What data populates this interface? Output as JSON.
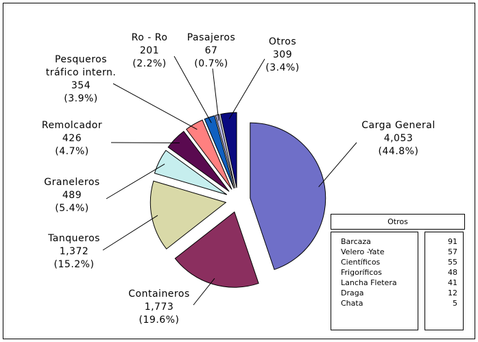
{
  "chart_data": {
    "type": "pie",
    "categories": [
      "Carga General",
      "Containeros",
      "Tanqueros",
      "Graneleros",
      "Remolcador",
      "Pesqueros tráfico intern.",
      "Ro - Ro",
      "Pasajeros",
      "Otros"
    ],
    "values": [
      4053,
      1773,
      1372,
      489,
      426,
      354,
      201,
      67,
      309
    ],
    "value_labels": [
      "4,053",
      "1,773",
      "1,372",
      "489",
      "426",
      "354",
      "201",
      "67",
      "309"
    ],
    "percents": [
      44.8,
      19.6,
      15.2,
      5.4,
      4.7,
      3.9,
      2.2,
      0.7,
      3.4
    ],
    "percent_labels": [
      "(44.8%)",
      "(19.6%)",
      "(15.2%)",
      "(5.4%)",
      "(4.7%)",
      "(3.9%)",
      "(2.2%)",
      "(0.7%)",
      "(3.4%)"
    ],
    "colors": [
      "#6f6fc8",
      "#8b2f5f",
      "#d9d9a8",
      "#c6eeee",
      "#5a0a50",
      "#ff8080",
      "#1060c0",
      "#b8b8e8",
      "#0a0a80"
    ]
  },
  "table": {
    "title": "Otros",
    "rows": [
      [
        "Barcaza",
        91
      ],
      [
        "Velero -Yate",
        57
      ],
      [
        "Científicos",
        55
      ],
      [
        "Frigoríficos",
        48
      ],
      [
        "Lancha Fletera",
        41
      ],
      [
        "Draga",
        12
      ],
      [
        "Chata",
        5
      ]
    ]
  }
}
